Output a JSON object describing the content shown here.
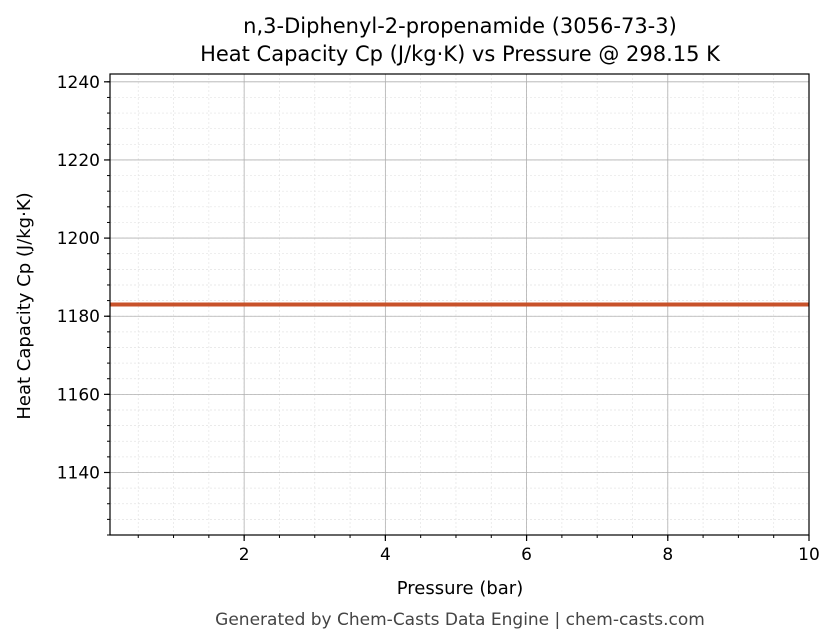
{
  "chart_data": {
    "type": "line",
    "title": "n,3-Diphenyl-2-propenamide (3056-73-3)",
    "subtitle": "Heat Capacity Cp (J/kg·K) vs Pressure @ 298.15 K",
    "xlabel": "Pressure (bar)",
    "ylabel": "Heat Capacity Cp (J/kg·K)",
    "xlim": [
      0.1,
      10
    ],
    "ylim": [
      1124,
      1242
    ],
    "xticks": [
      2,
      4,
      6,
      8,
      10
    ],
    "yticks": [
      1140,
      1160,
      1180,
      1200,
      1220,
      1240
    ],
    "x_minor_step": 0.5,
    "y_minor_step": 4,
    "grid": true,
    "legend": "none",
    "series": [
      {
        "color": "#c8522a",
        "x": [
          0.1,
          10
        ],
        "y": [
          1183,
          1183
        ]
      }
    ]
  },
  "footer": "Generated by Chem-Casts Data Engine | chem-casts.com",
  "colors": {
    "major_grid": "#b0b0b0",
    "minor_grid": "#e4e4e4",
    "line": "#c8522a"
  }
}
